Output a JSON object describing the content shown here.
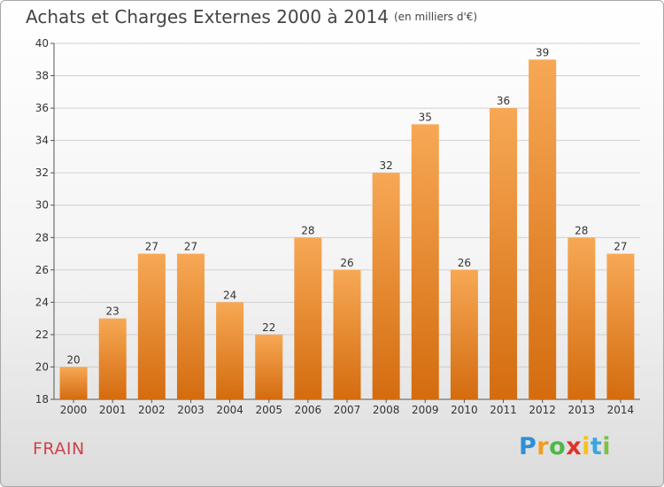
{
  "title": "Achats et Charges Externes 2000 à 2014",
  "unit": "(en milliers d'€)",
  "place": "FRAIN",
  "logo": {
    "letters": [
      "P",
      "r",
      "o",
      "x",
      "i",
      "t",
      "i"
    ],
    "colors": [
      "#2f8fd6",
      "#f39c1d",
      "#4db848",
      "#e0342a",
      "#f6c21a",
      "#3aa6dd",
      "#7cc242"
    ]
  },
  "colors": {
    "bar_top": "#f7a855",
    "bar_bottom": "#d46c0f",
    "grid": "#d0d0d0"
  },
  "chart_data": {
    "type": "bar",
    "categories": [
      "2000",
      "2001",
      "2002",
      "2003",
      "2004",
      "2005",
      "2006",
      "2007",
      "2008",
      "2009",
      "2010",
      "2011",
      "2012",
      "2013",
      "2014"
    ],
    "values": [
      20,
      23,
      27,
      27,
      24,
      22,
      28,
      26,
      32,
      35,
      26,
      36,
      39,
      28,
      27
    ],
    "ylim": [
      18,
      40
    ],
    "yticks": [
      18,
      20,
      22,
      24,
      26,
      28,
      30,
      32,
      34,
      36,
      38,
      40
    ],
    "grid": true,
    "grid_axis": "y"
  }
}
